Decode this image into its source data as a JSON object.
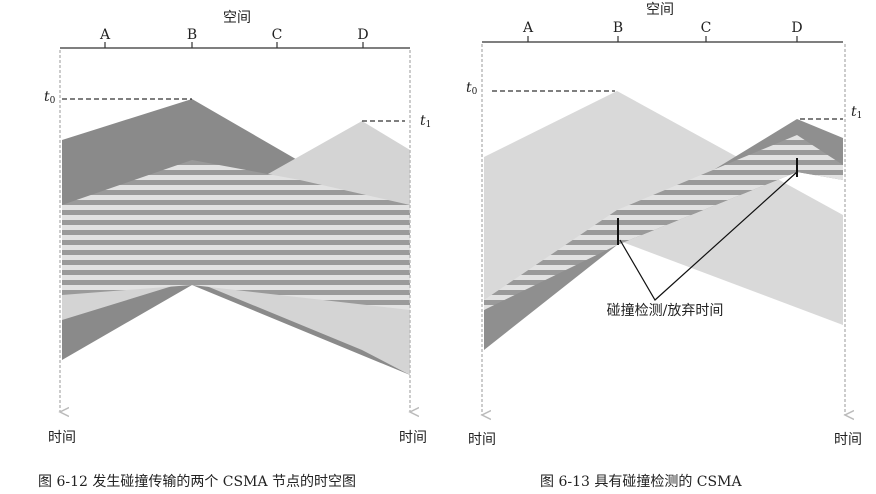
{
  "figures": [
    {
      "space_label": "空间",
      "nodes": [
        "A",
        "B",
        "C",
        "D"
      ],
      "t0": {
        "base": "t",
        "sub": "0"
      },
      "t1": {
        "base": "t",
        "sub": "1"
      },
      "time_left": "时间",
      "time_right": "时间",
      "caption": "图 6-12   发生碰撞传输的两个 CSMA 节点的时空图"
    },
    {
      "space_label": "空间",
      "nodes": [
        "A",
        "B",
        "C",
        "D"
      ],
      "t0": {
        "base": "t",
        "sub": "0"
      },
      "t1": {
        "base": "t",
        "sub": "1"
      },
      "time_left": "时间",
      "time_right": "时间",
      "annotation": "碰撞检测/放弃时间",
      "caption": "图 6-13   具有碰撞检测的 CSMA"
    }
  ]
}
